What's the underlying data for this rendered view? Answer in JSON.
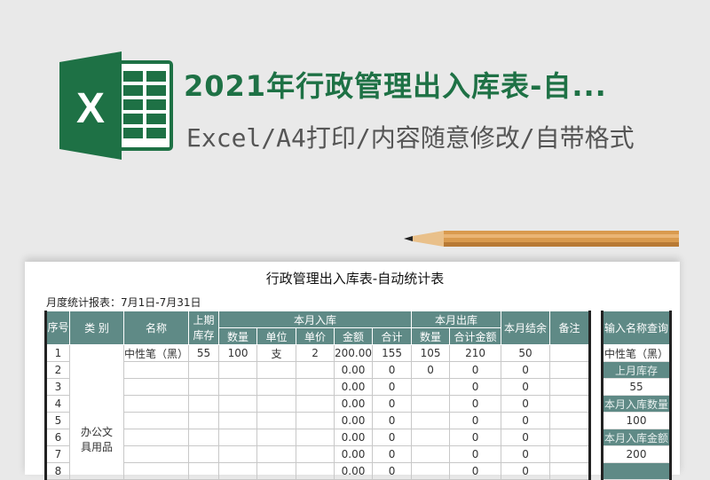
{
  "banner": {
    "title": "2021年行政管理出入库表-自...",
    "subtitle": "Excel/A4打印/内容随意修改/自带格式",
    "logo_letter": "X",
    "colors": {
      "brand": "#1e7145",
      "header": "#5f8a86"
    }
  },
  "sheet": {
    "title": "行政管理出入库表-自动统计表",
    "period": "月度统计报表：7月1日-7月31日",
    "headers": {
      "seq": "序号",
      "category": "类 别",
      "name": "名称",
      "prev_stock": "上期库存",
      "in_group": "本月入库",
      "in_qty": "数量",
      "in_unit": "单位",
      "in_price": "单价",
      "in_amount": "金额",
      "in_total": "合计",
      "out_group": "本月出库",
      "out_qty": "数量",
      "out_amount": "合计金额",
      "balance": "本月结余",
      "remark": "备注"
    },
    "category_cell": "办公文具用品",
    "rows": [
      {
        "seq": "1",
        "name": "中性笔（黑）",
        "prev": "55",
        "qty": "100",
        "unit": "支",
        "price": "2",
        "amount": "200.00",
        "total": "155",
        "out_qty": "105",
        "out_amount": "210",
        "balance": "50"
      },
      {
        "seq": "2",
        "name": "",
        "prev": "",
        "qty": "",
        "unit": "",
        "price": "",
        "amount": "0.00",
        "total": "0",
        "out_qty": "0",
        "out_amount": "0",
        "balance": "0"
      },
      {
        "seq": "3",
        "name": "",
        "prev": "",
        "qty": "",
        "unit": "",
        "price": "",
        "amount": "0.00",
        "total": "0",
        "out_qty": "",
        "out_amount": "0",
        "balance": "0"
      },
      {
        "seq": "4",
        "name": "",
        "prev": "",
        "qty": "",
        "unit": "",
        "price": "",
        "amount": "0.00",
        "total": "0",
        "out_qty": "",
        "out_amount": "0",
        "balance": "0"
      },
      {
        "seq": "5",
        "name": "",
        "prev": "",
        "qty": "",
        "unit": "",
        "price": "",
        "amount": "0.00",
        "total": "0",
        "out_qty": "",
        "out_amount": "0",
        "balance": "0"
      },
      {
        "seq": "6",
        "name": "",
        "prev": "",
        "qty": "",
        "unit": "",
        "price": "",
        "amount": "0.00",
        "total": "0",
        "out_qty": "",
        "out_amount": "0",
        "balance": "0"
      },
      {
        "seq": "7",
        "name": "",
        "prev": "",
        "qty": "",
        "unit": "",
        "price": "",
        "amount": "0.00",
        "total": "0",
        "out_qty": "",
        "out_amount": "0",
        "balance": "0"
      },
      {
        "seq": "8",
        "name": "",
        "prev": "",
        "qty": "",
        "unit": "",
        "price": "",
        "amount": "0.00",
        "total": "0",
        "out_qty": "",
        "out_amount": "0",
        "balance": "0"
      }
    ]
  },
  "query": {
    "header": "输入名称查询",
    "name": "中性笔（黑）",
    "items": [
      {
        "label": "上月库存",
        "value": "55"
      },
      {
        "label": "本月入库数量",
        "value": "100"
      },
      {
        "label": "本月入库金额",
        "value": "200"
      }
    ]
  }
}
